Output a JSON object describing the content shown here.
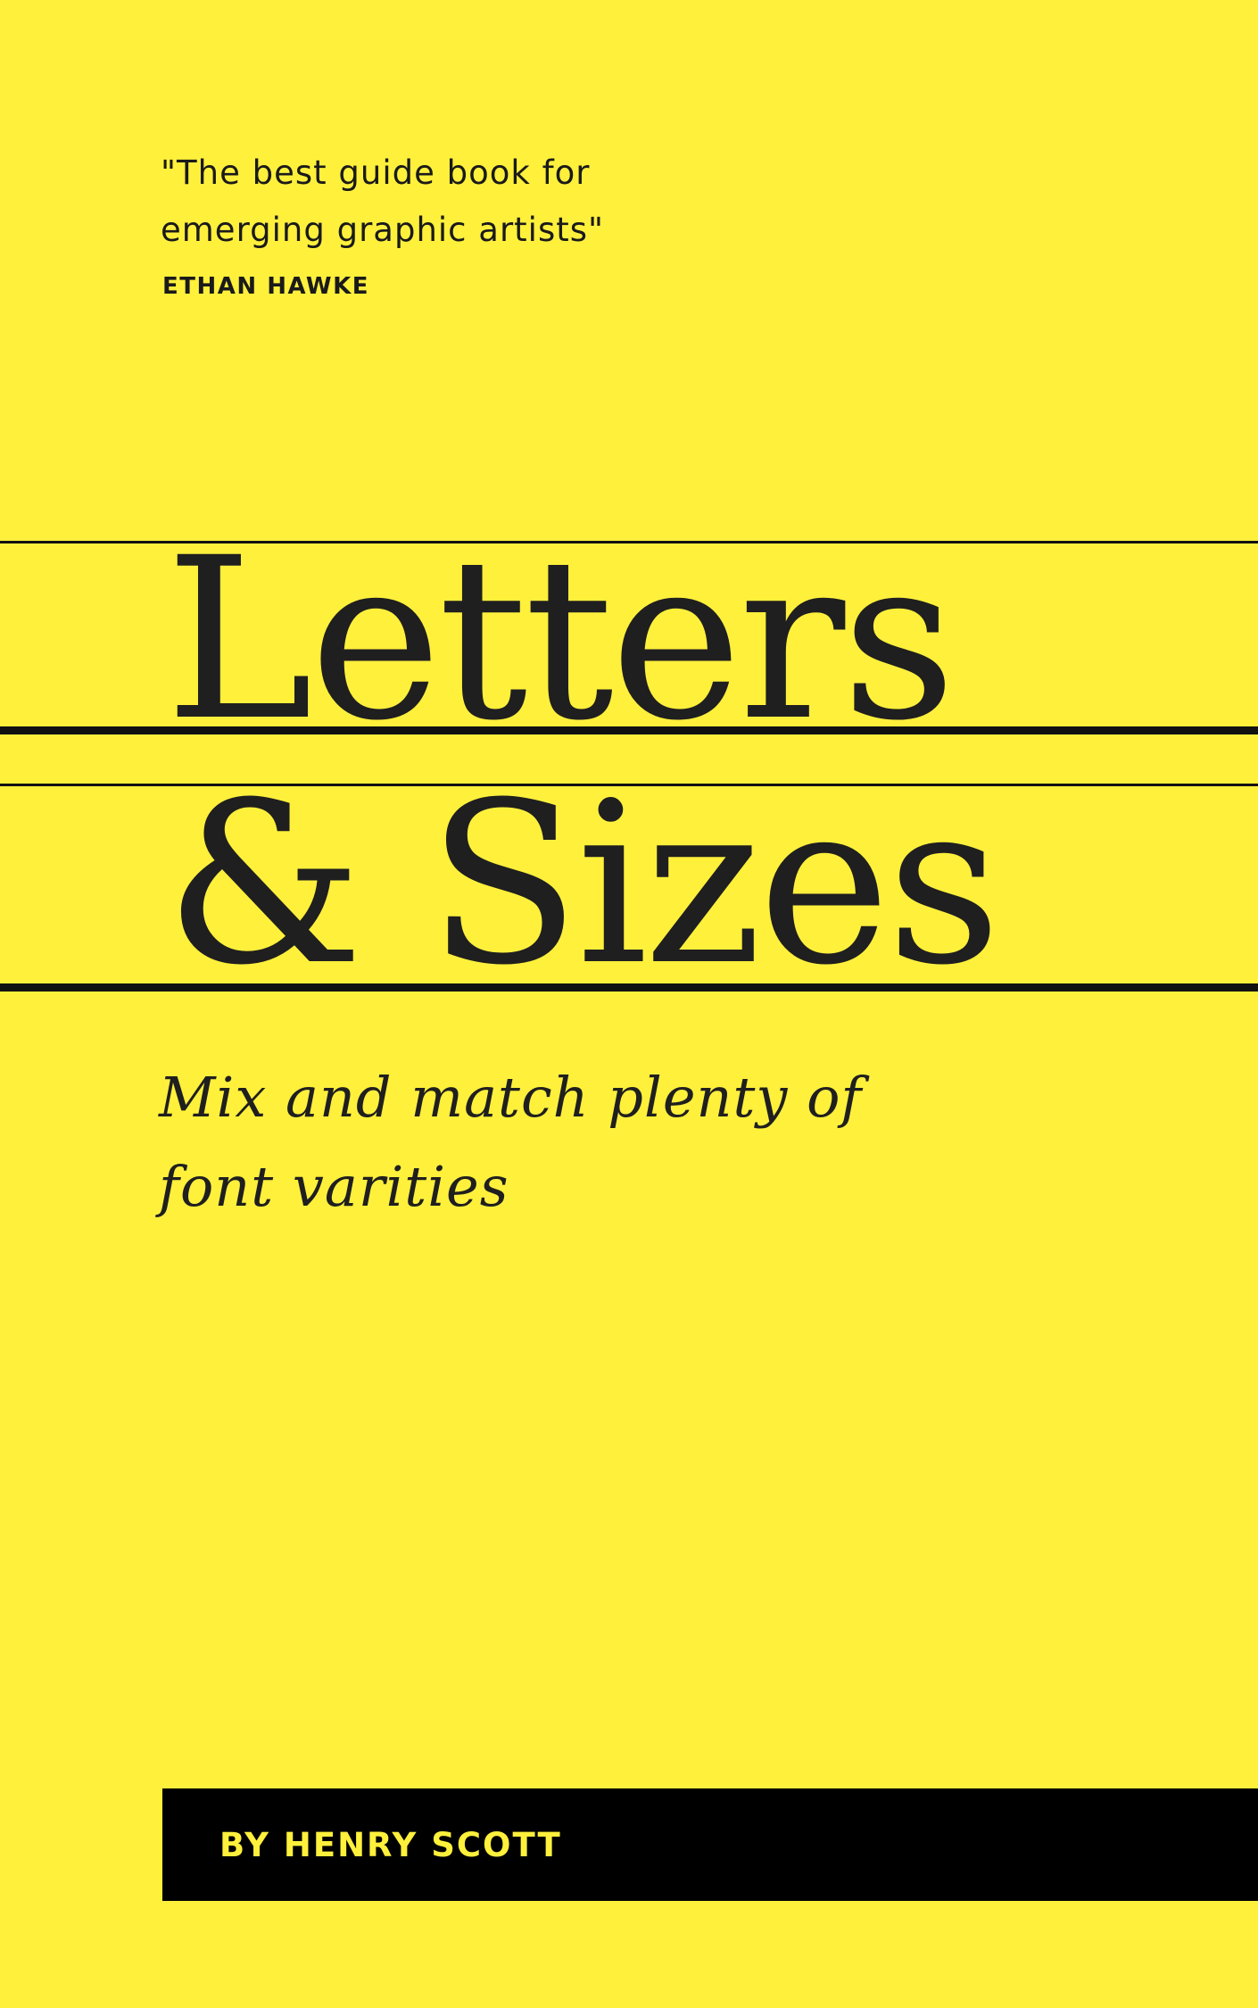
{
  "cover": {
    "background_color": "#FFF03C",
    "ink_color": "#1F1F1F",
    "quote": {
      "line1": "\"The best guide book for",
      "line2": "emerging graphic artists\""
    },
    "attribution": "ETHAN HAWKE",
    "title": {
      "line1": "Letters",
      "line2": "& Sizes"
    },
    "subtitle": {
      "line1": "Mix and match plenty of",
      "line2": "font varities"
    },
    "author": "BY HENRY SCOTT"
  }
}
